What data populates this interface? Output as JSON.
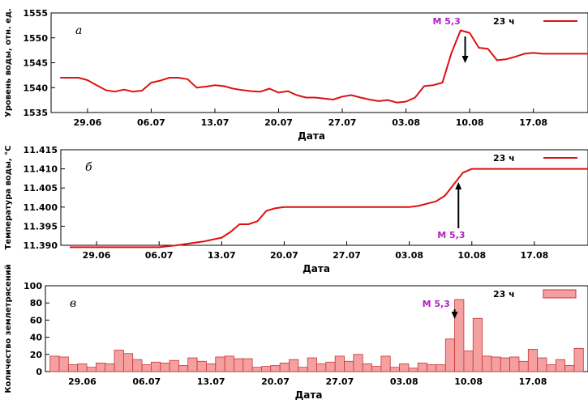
{
  "colors": {
    "series_line": "#dd1111",
    "bar_fill": "#f4a0a0",
    "bar_stroke": "#cc3333",
    "annotation": "#b020c0"
  },
  "chart_data": [
    {
      "type": "line",
      "panel_letter": "а",
      "ylabel": "Уровень воды, отн. ед.",
      "xlabel": "Дата",
      "legend": "23 ч",
      "legend_position": "top-right",
      "annotation": "M 5,3",
      "annotation_date": 41.5,
      "yticks": [
        "1535",
        "1540",
        "1545",
        "1550",
        "1555"
      ],
      "ylim": [
        1535,
        1555
      ],
      "xlim": [
        -4,
        55
      ],
      "xtick_values": [
        0,
        7,
        14,
        21,
        28,
        35,
        42,
        49
      ],
      "xtick_labels": [
        "29.06",
        "06.07",
        "13.07",
        "20.07",
        "27.07",
        "03.08",
        "10.08",
        "17.08"
      ],
      "x": [
        -3,
        -1,
        0,
        1,
        2,
        3,
        4,
        5,
        6,
        7,
        8,
        9,
        10,
        11,
        12,
        13,
        14,
        15,
        16,
        17,
        18,
        19,
        20,
        21,
        22,
        23,
        24,
        25,
        26,
        27,
        28,
        29,
        30,
        31,
        32,
        33,
        34,
        35,
        36,
        37,
        38,
        39,
        40,
        41,
        42,
        43,
        44,
        45,
        46,
        47,
        48,
        49,
        50,
        51,
        52,
        53,
        54,
        55
      ],
      "y": [
        1542,
        1542,
        1541.5,
        1540.5,
        1539.5,
        1539.2,
        1539.6,
        1539.2,
        1539.4,
        1541,
        1541.4,
        1542,
        1542,
        1541.7,
        1540,
        1540.2,
        1540.5,
        1540.3,
        1539.8,
        1539.5,
        1539.3,
        1539.2,
        1539.8,
        1539,
        1539.3,
        1538.5,
        1538,
        1538,
        1537.8,
        1537.6,
        1538.2,
        1538.5,
        1538,
        1537.6,
        1537.3,
        1537.5,
        1537,
        1537.2,
        1538,
        1540.3,
        1540.5,
        1541,
        1547,
        1551.5,
        1551,
        1548,
        1547.8,
        1545.5,
        1545.7,
        1546.2,
        1546.8,
        1547,
        1546.8,
        1546.8,
        1546.8,
        1546.8,
        1546.8,
        1546.8
      ]
    },
    {
      "type": "line",
      "panel_letter": "б",
      "ylabel": "Температура воды, °С",
      "xlabel": "Дата",
      "legend": "23 ч",
      "legend_position": "top-right",
      "annotation": "M 5,3",
      "annotation_date": 40.5,
      "yticks": [
        "11.390",
        "11.395",
        "11.400",
        "11.405",
        "11.410",
        "11.415"
      ],
      "ylim": [
        11.39,
        11.415
      ],
      "xlim": [
        -4,
        55
      ],
      "xtick_values": [
        0,
        7,
        14,
        21,
        28,
        35,
        42,
        49
      ],
      "xtick_labels": [
        "29.06",
        "06.07",
        "13.07",
        "20.07",
        "27.07",
        "03.08",
        "10.08",
        "17.08"
      ],
      "x": [
        -3,
        7,
        9,
        11,
        12,
        13,
        14,
        15,
        16,
        17,
        18,
        19,
        20,
        21,
        22,
        28,
        35,
        36,
        38,
        39,
        40,
        41,
        42,
        55
      ],
      "y": [
        11.3895,
        11.3895,
        11.39,
        11.3907,
        11.391,
        11.3915,
        11.392,
        11.3935,
        11.3955,
        11.3955,
        11.3963,
        11.399,
        11.3997,
        11.4,
        11.4,
        11.4,
        11.4,
        11.4003,
        11.4015,
        11.403,
        11.406,
        11.409,
        11.41,
        11.41
      ]
    },
    {
      "type": "bar",
      "panel_letter": "в",
      "ylabel": "Количество землетрясений",
      "xlabel": "Дата",
      "legend": "23 ч",
      "legend_position": "top-right",
      "annotation": "M 5,3",
      "annotation_date": 40.5,
      "yticks": [
        "0",
        "20",
        "40",
        "60",
        "80",
        "100"
      ],
      "ylim": [
        0,
        100
      ],
      "xlim": [
        -4,
        55
      ],
      "xtick_values": [
        0,
        7,
        14,
        21,
        28,
        35,
        42,
        49
      ],
      "xtick_labels": [
        "29.06",
        "06.07",
        "13.07",
        "20.07",
        "27.07",
        "03.08",
        "10.08",
        "17.08"
      ],
      "x": [
        -3,
        -2,
        -1,
        0,
        1,
        2,
        3,
        4,
        5,
        6,
        7,
        8,
        9,
        10,
        11,
        12,
        13,
        14,
        15,
        16,
        17,
        18,
        19,
        20,
        21,
        22,
        23,
        24,
        25,
        26,
        27,
        28,
        29,
        30,
        31,
        32,
        33,
        34,
        35,
        36,
        37,
        38,
        39,
        40,
        41,
        42,
        43,
        44,
        45,
        46,
        47,
        48,
        49,
        50,
        51,
        52,
        53,
        54
      ],
      "values": [
        18,
        17,
        8,
        9,
        5,
        10,
        9,
        25,
        21,
        14,
        8,
        11,
        10,
        13,
        7,
        16,
        12,
        9,
        17,
        18,
        15,
        15,
        5,
        6,
        7,
        10,
        14,
        5,
        16,
        9,
        11,
        18,
        12,
        20,
        9,
        6,
        18,
        5,
        9,
        4,
        10,
        8,
        8,
        38,
        84,
        24,
        62,
        18,
        17,
        16,
        17,
        12,
        26,
        16,
        8,
        14,
        7,
        27
      ]
    }
  ]
}
